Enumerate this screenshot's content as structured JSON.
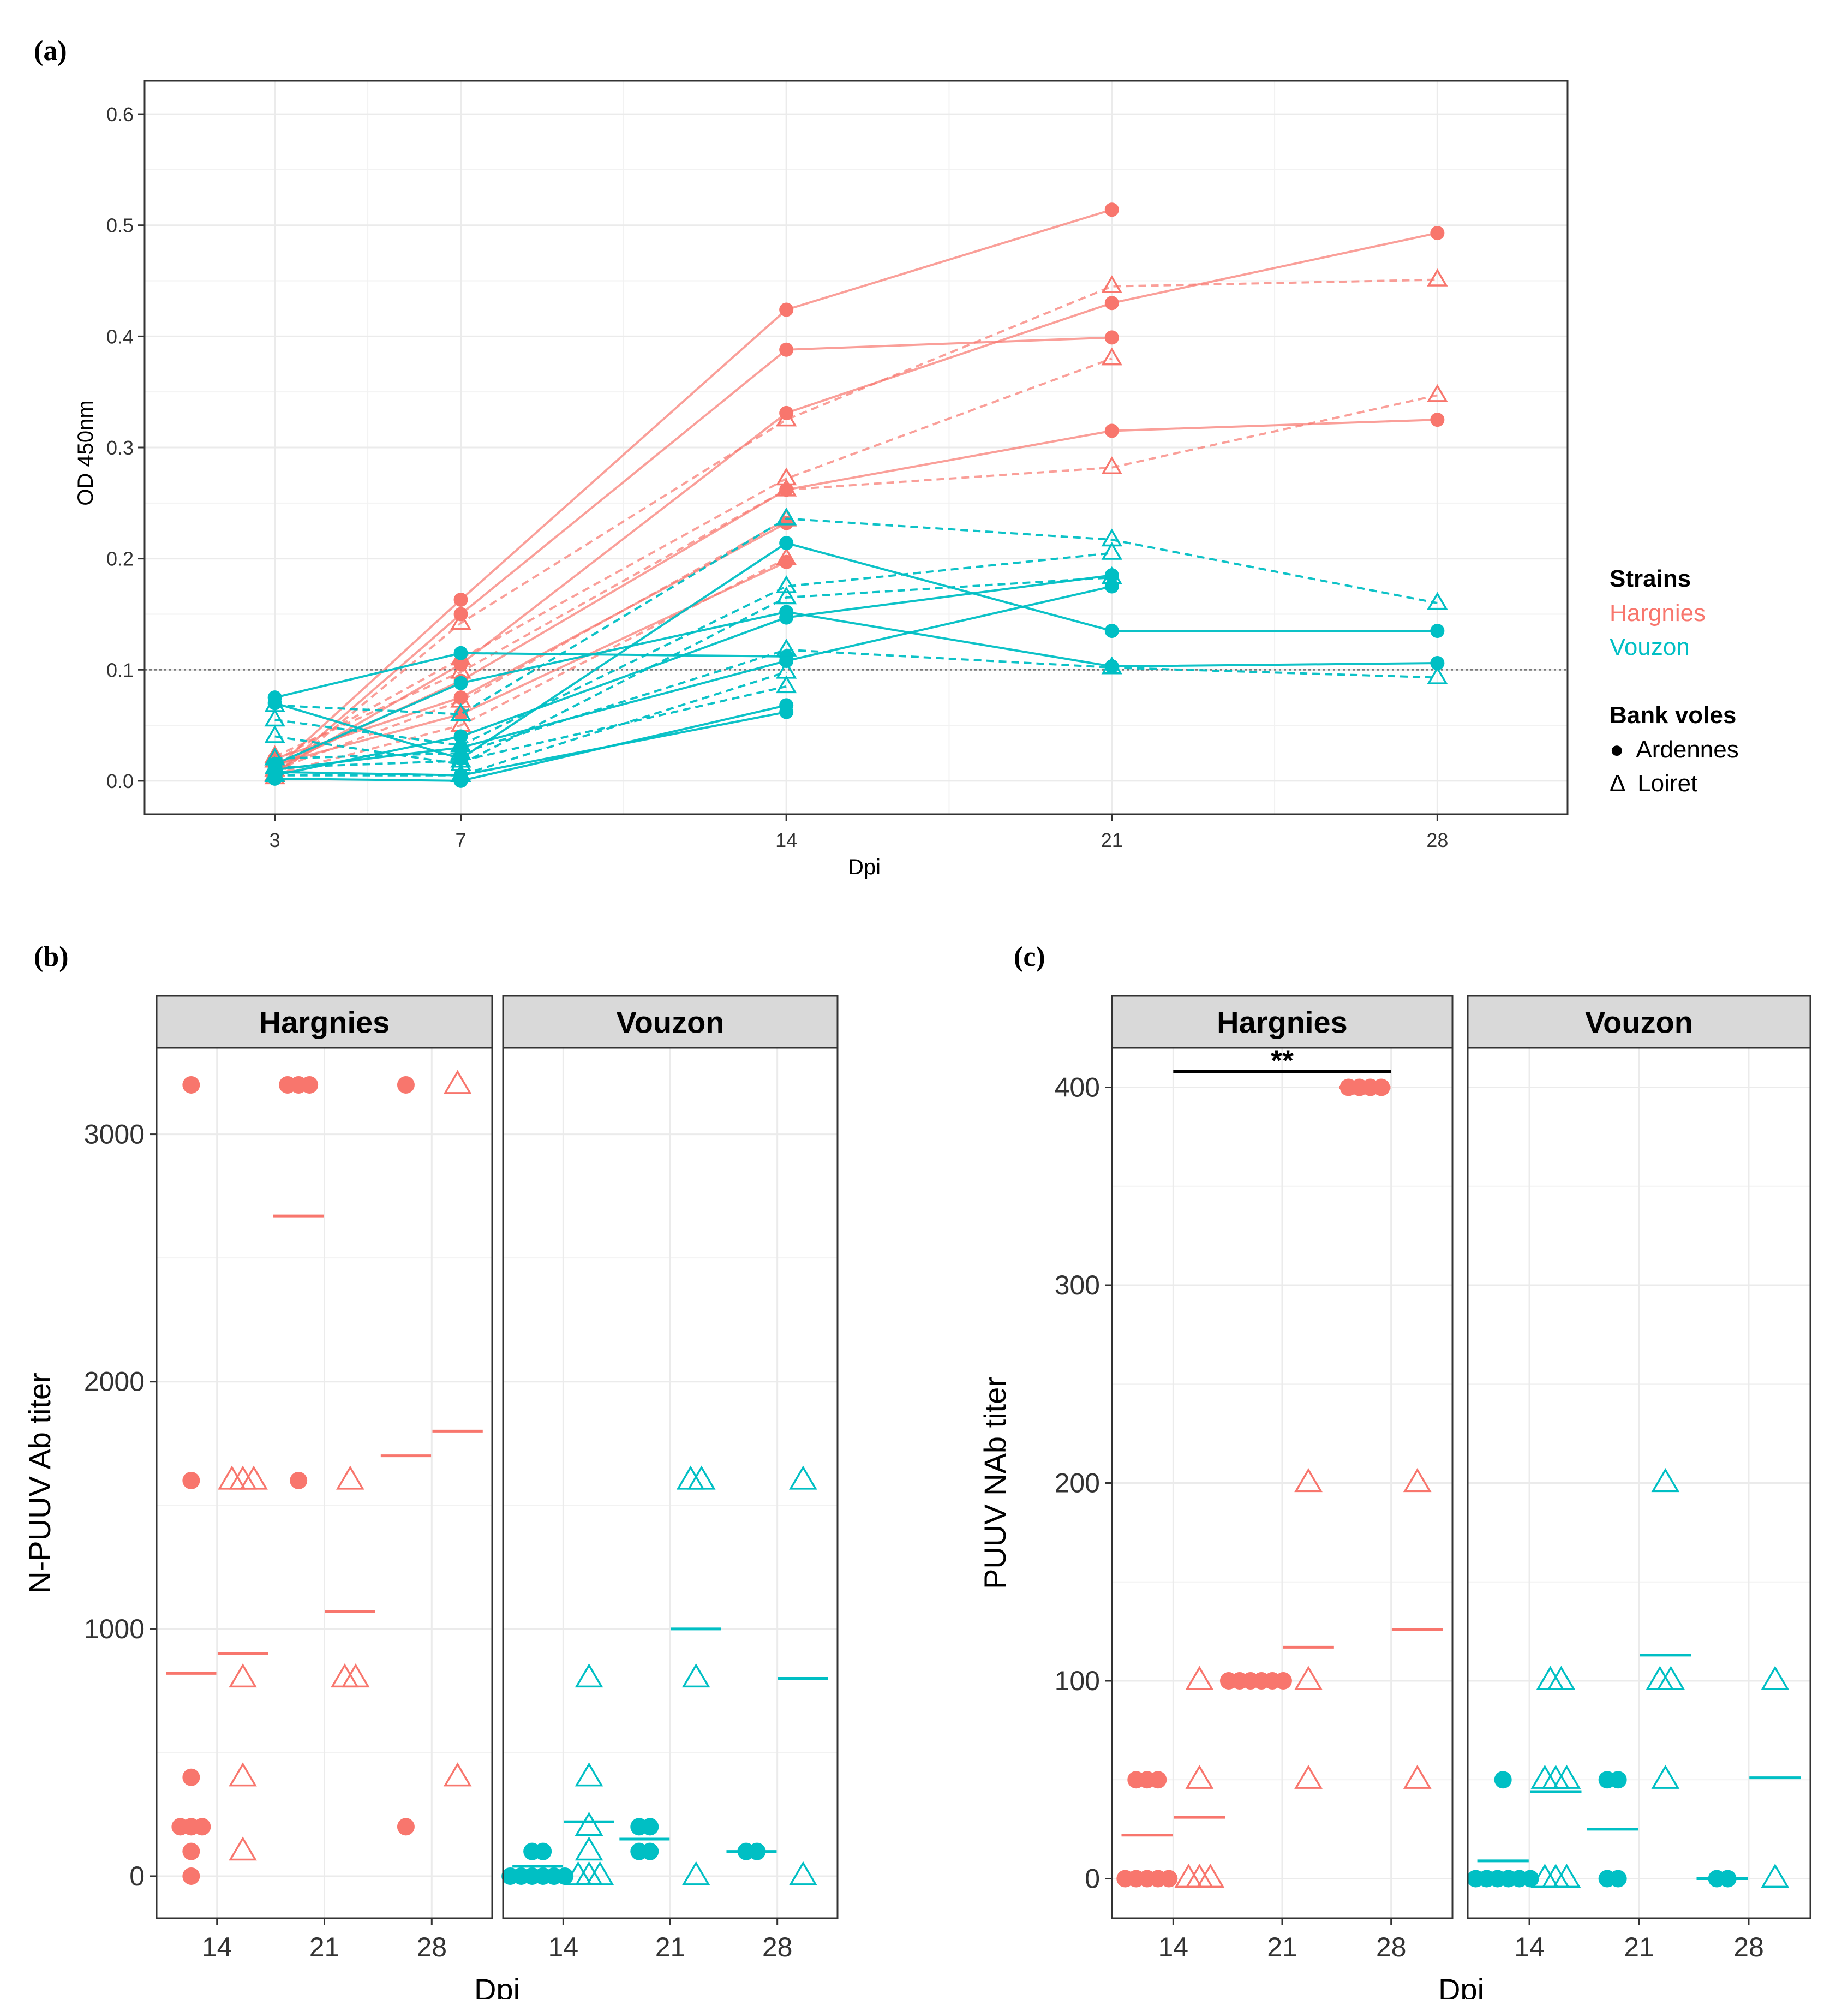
{
  "colors": {
    "hargnies": "#F8766D",
    "vouzon": "#00BFC4",
    "grid": "#EBEBEB",
    "strip": "#D9D9D9"
  },
  "panel_labels": {
    "a": "(a)",
    "b": "(b)",
    "c": "(c)"
  },
  "legend": {
    "strains_title": "Strains",
    "strains": [
      "Hargnies",
      "Vouzon"
    ],
    "voles_title": "Bank voles",
    "voles": [
      {
        "symbol": "●",
        "label": "Ardennes"
      },
      {
        "symbol": "Δ",
        "label": "Loiret"
      }
    ]
  },
  "chart_data": [
    {
      "id": "a",
      "type": "line",
      "xlabel": "Dpi",
      "ylabel": "OD 450nm",
      "x": [
        3,
        7,
        14,
        21,
        28
      ],
      "xticks": [
        "3",
        "7",
        "14",
        "21",
        "28"
      ],
      "ylim": [
        -0.03,
        0.63
      ],
      "yticks": [
        "0.0",
        "0.1",
        "0.2",
        "0.3",
        "0.4",
        "0.5",
        "0.6"
      ],
      "threshold": 0.1,
      "series": [
        {
          "strain": "Hargnies",
          "vole": "Ardennes",
          "values": [
            0.01,
            0.163,
            0.424,
            0.514,
            null
          ]
        },
        {
          "strain": "Hargnies",
          "vole": "Ardennes",
          "values": [
            0.005,
            0.15,
            0.388,
            0.399,
            null
          ]
        },
        {
          "strain": "Hargnies",
          "vole": "Ardennes",
          "values": [
            0.008,
            0.105,
            0.331,
            0.43,
            0.493
          ]
        },
        {
          "strain": "Hargnies",
          "vole": "Ardennes",
          "values": [
            0.012,
            0.09,
            0.262,
            0.315,
            0.325
          ]
        },
        {
          "strain": "Hargnies",
          "vole": "Ardennes",
          "values": [
            0.02,
            0.075,
            0.232,
            null,
            null
          ]
        },
        {
          "strain": "Hargnies",
          "vole": "Ardennes",
          "values": [
            0.015,
            0.06,
            0.197,
            null,
            null
          ]
        },
        {
          "strain": "Hargnies",
          "vole": "Loiret",
          "values": [
            0.003,
            0.142,
            0.325,
            0.445,
            0.451
          ]
        },
        {
          "strain": "Hargnies",
          "vole": "Loiret",
          "values": [
            0.018,
            0.11,
            0.272,
            0.38,
            null
          ]
        },
        {
          "strain": "Hargnies",
          "vole": "Loiret",
          "values": [
            0.022,
            0.098,
            0.262,
            0.282,
            0.347
          ]
        },
        {
          "strain": "Hargnies",
          "vole": "Loiret",
          "values": [
            0.01,
            0.072,
            0.235,
            null,
            null
          ]
        },
        {
          "strain": "Hargnies",
          "vole": "Loiret",
          "values": [
            0.006,
            0.05,
            0.2,
            null,
            null
          ]
        },
        {
          "strain": "Vouzon",
          "vole": "Ardennes",
          "values": [
            0.075,
            0.115,
            0.112,
            null,
            null
          ]
        },
        {
          "strain": "Vouzon",
          "vole": "Ardennes",
          "values": [
            0.07,
            0.02,
            0.214,
            0.135,
            0.135
          ]
        },
        {
          "strain": "Vouzon",
          "vole": "Ardennes",
          "values": [
            0.015,
            0.088,
            0.152,
            0.103,
            0.106
          ]
        },
        {
          "strain": "Vouzon",
          "vole": "Ardennes",
          "values": [
            0.005,
            0.04,
            0.147,
            0.185,
            null
          ]
        },
        {
          "strain": "Vouzon",
          "vole": "Ardennes",
          "values": [
            0.01,
            0.03,
            0.108,
            0.175,
            null
          ]
        },
        {
          "strain": "Vouzon",
          "vole": "Ardennes",
          "values": [
            0.002,
            0.0,
            0.068,
            null,
            null
          ]
        },
        {
          "strain": "Vouzon",
          "vole": "Ardennes",
          "values": [
            0.008,
            0.005,
            0.062,
            null,
            null
          ]
        },
        {
          "strain": "Vouzon",
          "vole": "Loiret",
          "values": [
            0.068,
            0.06,
            0.236,
            0.217,
            0.16
          ]
        },
        {
          "strain": "Vouzon",
          "vole": "Loiret",
          "values": [
            0.055,
            0.032,
            0.175,
            0.205,
            null
          ]
        },
        {
          "strain": "Vouzon",
          "vole": "Loiret",
          "values": [
            0.04,
            0.015,
            0.165,
            0.183,
            null
          ]
        },
        {
          "strain": "Vouzon",
          "vole": "Loiret",
          "values": [
            0.02,
            0.025,
            0.118,
            0.102,
            0.093
          ]
        },
        {
          "strain": "Vouzon",
          "vole": "Loiret",
          "values": [
            0.005,
            0.005,
            0.098,
            null,
            null
          ]
        },
        {
          "strain": "Vouzon",
          "vole": "Loiret",
          "values": [
            0.012,
            0.018,
            0.085,
            null,
            null
          ]
        }
      ]
    },
    {
      "id": "b",
      "type": "scatter",
      "xlabel": "Dpi",
      "ylabel": "N-PUUV Ab titer",
      "ylim": [
        -170,
        3350
      ],
      "yticks": [
        0,
        1000,
        2000,
        3000
      ],
      "ytick_labels": [
        "0",
        "1000",
        "2000",
        "3000"
      ],
      "facets": [
        "Hargnies",
        "Vouzon"
      ],
      "xticks": [
        "14",
        "21",
        "28"
      ],
      "points": [
        {
          "facet": "Hargnies",
          "dpi": 14,
          "vole": "Ardennes",
          "values": [
            3200,
            1600,
            400,
            200,
            200,
            200,
            100,
            0
          ]
        },
        {
          "facet": "Hargnies",
          "dpi": 14,
          "vole": "Loiret",
          "values": [
            1600,
            1600,
            1600,
            800,
            400,
            100
          ]
        },
        {
          "facet": "Hargnies",
          "dpi": 21,
          "vole": "Ardennes",
          "values": [
            3200,
            3200,
            3200,
            1600
          ]
        },
        {
          "facet": "Hargnies",
          "dpi": 21,
          "vole": "Loiret",
          "values": [
            1600,
            800,
            800
          ]
        },
        {
          "facet": "Hargnies",
          "dpi": 28,
          "vole": "Ardennes",
          "values": [
            3200,
            200
          ]
        },
        {
          "facet": "Hargnies",
          "dpi": 28,
          "vole": "Loiret",
          "values": [
            3200,
            400
          ]
        },
        {
          "facet": "Vouzon",
          "dpi": 14,
          "vole": "Ardennes",
          "values": [
            100,
            100,
            0,
            0,
            0,
            0,
            0,
            0
          ]
        },
        {
          "facet": "Vouzon",
          "dpi": 14,
          "vole": "Loiret",
          "values": [
            800,
            400,
            200,
            100,
            0,
            0,
            0
          ]
        },
        {
          "facet": "Vouzon",
          "dpi": 21,
          "vole": "Ardennes",
          "values": [
            200,
            200,
            100,
            100
          ]
        },
        {
          "facet": "Vouzon",
          "dpi": 21,
          "vole": "Loiret",
          "values": [
            1600,
            1600,
            800,
            0
          ]
        },
        {
          "facet": "Vouzon",
          "dpi": 28,
          "vole": "Ardennes",
          "values": [
            100,
            100
          ]
        },
        {
          "facet": "Vouzon",
          "dpi": 28,
          "vole": "Loiret",
          "values": [
            1600,
            0
          ]
        }
      ],
      "means": [
        {
          "facet": "Hargnies",
          "dpi": 14,
          "vole": "Ardennes",
          "value": 820
        },
        {
          "facet": "Hargnies",
          "dpi": 14,
          "vole": "Loiret",
          "value": 900
        },
        {
          "facet": "Hargnies",
          "dpi": 21,
          "vole": "Ardennes",
          "value": 2670
        },
        {
          "facet": "Hargnies",
          "dpi": 21,
          "vole": "Loiret",
          "value": 1070
        },
        {
          "facet": "Hargnies",
          "dpi": 28,
          "vole": "Ardennes",
          "value": 1700
        },
        {
          "facet": "Hargnies",
          "dpi": 28,
          "vole": "Loiret",
          "value": 1800
        },
        {
          "facet": "Vouzon",
          "dpi": 14,
          "vole": "Ardennes",
          "value": 40
        },
        {
          "facet": "Vouzon",
          "dpi": 14,
          "vole": "Loiret",
          "value": 220
        },
        {
          "facet": "Vouzon",
          "dpi": 21,
          "vole": "Ardennes",
          "value": 150
        },
        {
          "facet": "Vouzon",
          "dpi": 21,
          "vole": "Loiret",
          "value": 1000
        },
        {
          "facet": "Vouzon",
          "dpi": 28,
          "vole": "Ardennes",
          "value": 100
        },
        {
          "facet": "Vouzon",
          "dpi": 28,
          "vole": "Loiret",
          "value": 800
        }
      ]
    },
    {
      "id": "c",
      "type": "scatter",
      "xlabel": "Dpi",
      "ylabel": "PUUV NAb titer",
      "ylim": [
        -20,
        420
      ],
      "yticks": [
        0,
        100,
        200,
        300,
        400
      ],
      "ytick_labels": [
        "0",
        "100",
        "200",
        "300",
        "400"
      ],
      "facets": [
        "Hargnies",
        "Vouzon"
      ],
      "xticks": [
        "14",
        "21",
        "28"
      ],
      "significance": {
        "facet": "Hargnies",
        "from_dpi": 14,
        "to_dpi": 28,
        "label": "**",
        "y": 408
      },
      "points": [
        {
          "facet": "Hargnies",
          "dpi": 14,
          "vole": "Ardennes",
          "values": [
            50,
            50,
            50,
            0,
            0,
            0,
            0,
            0
          ]
        },
        {
          "facet": "Hargnies",
          "dpi": 14,
          "vole": "Loiret",
          "values": [
            100,
            50,
            0,
            0,
            0
          ]
        },
        {
          "facet": "Hargnies",
          "dpi": 21,
          "vole": "Ardennes",
          "values": [
            100,
            100,
            100,
            100,
            100,
            100
          ]
        },
        {
          "facet": "Hargnies",
          "dpi": 21,
          "vole": "Loiret",
          "values": [
            200,
            100,
            50
          ]
        },
        {
          "facet": "Hargnies",
          "dpi": 28,
          "vole": "Ardennes",
          "values": [
            400,
            400,
            400,
            400
          ]
        },
        {
          "facet": "Hargnies",
          "dpi": 28,
          "vole": "Loiret",
          "values": [
            200,
            50
          ]
        },
        {
          "facet": "Vouzon",
          "dpi": 14,
          "vole": "Ardennes",
          "values": [
            50,
            0,
            0,
            0,
            0,
            0,
            0
          ]
        },
        {
          "facet": "Vouzon",
          "dpi": 14,
          "vole": "Loiret",
          "values": [
            100,
            100,
            50,
            50,
            50,
            0,
            0,
            0
          ]
        },
        {
          "facet": "Vouzon",
          "dpi": 21,
          "vole": "Ardennes",
          "values": [
            50,
            50,
            0,
            0
          ]
        },
        {
          "facet": "Vouzon",
          "dpi": 21,
          "vole": "Loiret",
          "values": [
            200,
            100,
            100,
            50
          ]
        },
        {
          "facet": "Vouzon",
          "dpi": 28,
          "vole": "Ardennes",
          "values": [
            0,
            0
          ]
        },
        {
          "facet": "Vouzon",
          "dpi": 28,
          "vole": "Loiret",
          "values": [
            100,
            0
          ]
        }
      ],
      "means": [
        {
          "facet": "Hargnies",
          "dpi": 14,
          "vole": "Ardennes",
          "value": 22
        },
        {
          "facet": "Hargnies",
          "dpi": 14,
          "vole": "Loiret",
          "value": 31
        },
        {
          "facet": "Hargnies",
          "dpi": 21,
          "vole": "Ardennes",
          "value": 100
        },
        {
          "facet": "Hargnies",
          "dpi": 21,
          "vole": "Loiret",
          "value": 117
        },
        {
          "facet": "Hargnies",
          "dpi": 28,
          "vole": "Ardennes",
          "value": 400
        },
        {
          "facet": "Hargnies",
          "dpi": 28,
          "vole": "Loiret",
          "value": 126
        },
        {
          "facet": "Vouzon",
          "dpi": 14,
          "vole": "Ardennes",
          "value": 9
        },
        {
          "facet": "Vouzon",
          "dpi": 14,
          "vole": "Loiret",
          "value": 44
        },
        {
          "facet": "Vouzon",
          "dpi": 21,
          "vole": "Ardennes",
          "value": 25
        },
        {
          "facet": "Vouzon",
          "dpi": 21,
          "vole": "Loiret",
          "value": 113
        },
        {
          "facet": "Vouzon",
          "dpi": 28,
          "vole": "Ardennes",
          "value": 0
        },
        {
          "facet": "Vouzon",
          "dpi": 28,
          "vole": "Loiret",
          "value": 51
        }
      ]
    }
  ]
}
